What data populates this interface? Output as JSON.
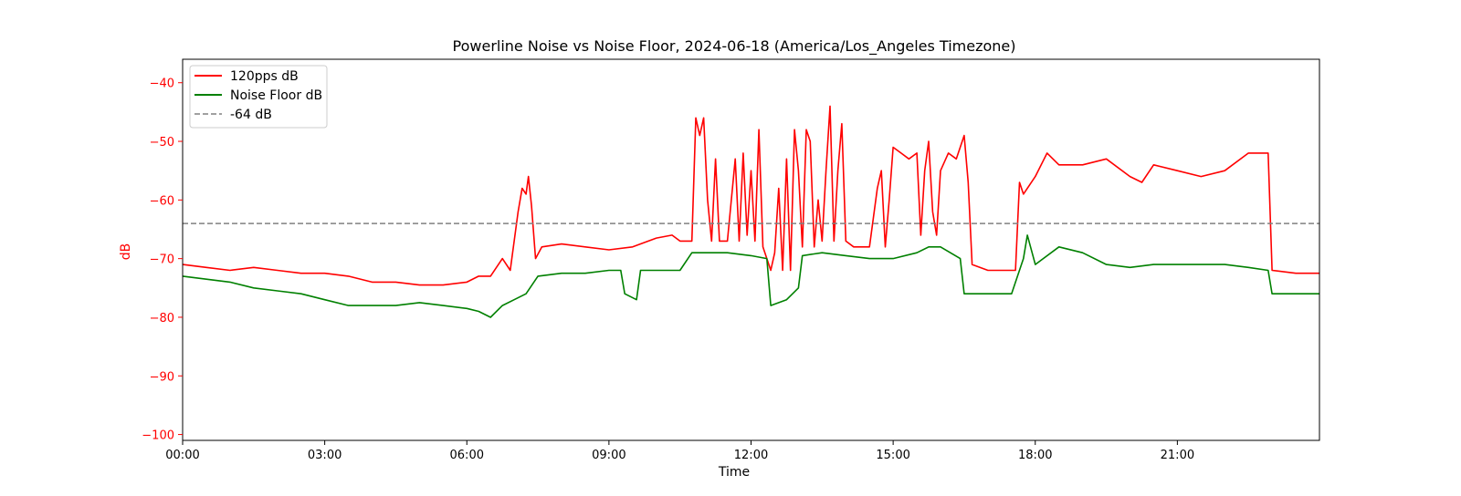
{
  "chart_data": {
    "type": "line",
    "title": "Powerline Noise vs Noise Floor, 2024-06-18 (America/Los_Angeles Timezone)",
    "xlabel": "Time",
    "ylabel": "dB",
    "xlim": [
      "00:00",
      "24:00"
    ],
    "ylim": [
      -101,
      -36
    ],
    "x_ticks": [
      "00:00",
      "03:00",
      "06:00",
      "09:00",
      "12:00",
      "15:00",
      "18:00",
      "21:00"
    ],
    "y_ticks": [
      -40,
      -50,
      -60,
      -70,
      -80,
      -90,
      -100
    ],
    "grid": false,
    "legend_position": "top-left",
    "colors": {
      "primary": "#ff0000",
      "secondary": "#008000",
      "reference": "#808080",
      "ylabel": "#ff0000"
    },
    "series": [
      {
        "name": "120pps dB",
        "color": "#ff0000",
        "style": "solid",
        "points": [
          [
            "00:00",
            -71
          ],
          [
            "00:30",
            -71.5
          ],
          [
            "01:00",
            -72
          ],
          [
            "01:30",
            -71.5
          ],
          [
            "02:00",
            -72
          ],
          [
            "02:30",
            -72.5
          ],
          [
            "03:00",
            -72.5
          ],
          [
            "03:30",
            -73
          ],
          [
            "04:00",
            -74
          ],
          [
            "04:30",
            -74
          ],
          [
            "05:00",
            -74.5
          ],
          [
            "05:30",
            -74.5
          ],
          [
            "06:00",
            -74
          ],
          [
            "06:15",
            -73
          ],
          [
            "06:30",
            -73
          ],
          [
            "06:45",
            -70
          ],
          [
            "06:55",
            -72
          ],
          [
            "07:05",
            -62
          ],
          [
            "07:10",
            -58
          ],
          [
            "07:15",
            -59
          ],
          [
            "07:18",
            -56
          ],
          [
            "07:22",
            -61
          ],
          [
            "07:27",
            -70
          ],
          [
            "07:35",
            -68
          ],
          [
            "08:00",
            -67.5
          ],
          [
            "08:30",
            -68
          ],
          [
            "09:00",
            -68.5
          ],
          [
            "09:30",
            -68
          ],
          [
            "10:00",
            -66.5
          ],
          [
            "10:20",
            -66
          ],
          [
            "10:30",
            -67
          ],
          [
            "10:45",
            -67
          ],
          [
            "10:50",
            -46
          ],
          [
            "10:55",
            -49
          ],
          [
            "11:00",
            -46
          ],
          [
            "11:05",
            -60
          ],
          [
            "11:10",
            -67
          ],
          [
            "11:15",
            -53
          ],
          [
            "11:20",
            -67
          ],
          [
            "11:30",
            -67
          ],
          [
            "11:40",
            -53
          ],
          [
            "11:45",
            -67
          ],
          [
            "11:50",
            -52
          ],
          [
            "11:55",
            -66
          ],
          [
            "12:00",
            -55
          ],
          [
            "12:05",
            -67
          ],
          [
            "12:10",
            -48
          ],
          [
            "12:15",
            -68
          ],
          [
            "12:25",
            -72
          ],
          [
            "12:30",
            -69
          ],
          [
            "12:35",
            -58
          ],
          [
            "12:40",
            -72
          ],
          [
            "12:45",
            -53
          ],
          [
            "12:50",
            -72
          ],
          [
            "12:55",
            -48
          ],
          [
            "13:00",
            -55
          ],
          [
            "13:05",
            -68
          ],
          [
            "13:10",
            -48
          ],
          [
            "13:15",
            -50
          ],
          [
            "13:20",
            -68
          ],
          [
            "13:25",
            -60
          ],
          [
            "13:30",
            -67
          ],
          [
            "13:35",
            -55
          ],
          [
            "13:40",
            -44
          ],
          [
            "13:45",
            -67
          ],
          [
            "13:50",
            -55
          ],
          [
            "13:55",
            -47
          ],
          [
            "14:00",
            -67
          ],
          [
            "14:10",
            -68
          ],
          [
            "14:20",
            -68
          ],
          [
            "14:30",
            -68
          ],
          [
            "14:35",
            -63
          ],
          [
            "14:40",
            -58
          ],
          [
            "14:45",
            -55
          ],
          [
            "14:50",
            -68
          ],
          [
            "14:55",
            -60
          ],
          [
            "15:00",
            -51
          ],
          [
            "15:10",
            -52
          ],
          [
            "15:20",
            -53
          ],
          [
            "15:30",
            -52
          ],
          [
            "15:35",
            -66
          ],
          [
            "15:40",
            -55
          ],
          [
            "15:45",
            -50
          ],
          [
            "15:50",
            -62
          ],
          [
            "15:55",
            -66
          ],
          [
            "16:00",
            -55
          ],
          [
            "16:10",
            -52
          ],
          [
            "16:20",
            -53
          ],
          [
            "16:30",
            -49
          ],
          [
            "16:35",
            -57
          ],
          [
            "16:40",
            -71
          ],
          [
            "17:00",
            -72
          ],
          [
            "17:30",
            -72
          ],
          [
            "17:35",
            -72
          ],
          [
            "17:40",
            -57
          ],
          [
            "17:45",
            -59
          ],
          [
            "18:00",
            -56
          ],
          [
            "18:15",
            -52
          ],
          [
            "18:30",
            -54
          ],
          [
            "19:00",
            -54
          ],
          [
            "19:30",
            -53
          ],
          [
            "20:00",
            -56
          ],
          [
            "20:15",
            -57
          ],
          [
            "20:30",
            -54
          ],
          [
            "21:00",
            -55
          ],
          [
            "21:30",
            -56
          ],
          [
            "22:00",
            -55
          ],
          [
            "22:30",
            -52
          ],
          [
            "22:55",
            -52
          ],
          [
            "23:00",
            -72
          ],
          [
            "23:30",
            -72.5
          ],
          [
            "24:00",
            -72.5
          ]
        ]
      },
      {
        "name": "Noise Floor dB",
        "color": "#008000",
        "style": "solid",
        "points": [
          [
            "00:00",
            -73
          ],
          [
            "00:30",
            -73.5
          ],
          [
            "01:00",
            -74
          ],
          [
            "01:30",
            -75
          ],
          [
            "02:00",
            -75.5
          ],
          [
            "02:30",
            -76
          ],
          [
            "03:00",
            -77
          ],
          [
            "03:30",
            -78
          ],
          [
            "04:00",
            -78
          ],
          [
            "04:30",
            -78
          ],
          [
            "05:00",
            -77.5
          ],
          [
            "05:30",
            -78
          ],
          [
            "06:00",
            -78.5
          ],
          [
            "06:15",
            -79
          ],
          [
            "06:30",
            -80
          ],
          [
            "06:45",
            -78
          ],
          [
            "07:00",
            -77
          ],
          [
            "07:15",
            -76
          ],
          [
            "07:30",
            -73
          ],
          [
            "08:00",
            -72.5
          ],
          [
            "08:30",
            -72.5
          ],
          [
            "09:00",
            -72
          ],
          [
            "09:15",
            -72
          ],
          [
            "09:20",
            -76
          ],
          [
            "09:35",
            -77
          ],
          [
            "09:40",
            -72
          ],
          [
            "10:00",
            -72
          ],
          [
            "10:30",
            -72
          ],
          [
            "10:45",
            -69
          ],
          [
            "11:00",
            -69
          ],
          [
            "11:30",
            -69
          ],
          [
            "12:00",
            -69.5
          ],
          [
            "12:20",
            -70
          ],
          [
            "12:25",
            -78
          ],
          [
            "12:45",
            -77
          ],
          [
            "13:00",
            -75
          ],
          [
            "13:05",
            -69.5
          ],
          [
            "13:30",
            -69
          ],
          [
            "14:00",
            -69.5
          ],
          [
            "14:30",
            -70
          ],
          [
            "15:00",
            -70
          ],
          [
            "15:30",
            -69
          ],
          [
            "15:45",
            -68
          ],
          [
            "16:00",
            -68
          ],
          [
            "16:25",
            -70
          ],
          [
            "16:30",
            -76
          ],
          [
            "17:00",
            -76
          ],
          [
            "17:30",
            -76
          ],
          [
            "17:45",
            -70
          ],
          [
            "17:50",
            -66
          ],
          [
            "18:00",
            -71
          ],
          [
            "18:30",
            -68
          ],
          [
            "19:00",
            -69
          ],
          [
            "19:30",
            -71
          ],
          [
            "20:00",
            -71.5
          ],
          [
            "20:30",
            -71
          ],
          [
            "21:00",
            -71
          ],
          [
            "21:30",
            -71
          ],
          [
            "22:00",
            -71
          ],
          [
            "22:30",
            -71.5
          ],
          [
            "22:55",
            -72
          ],
          [
            "23:00",
            -76
          ],
          [
            "23:30",
            -76
          ],
          [
            "24:00",
            -76
          ]
        ]
      },
      {
        "name": "-64 dB",
        "color": "#808080",
        "style": "dashed",
        "points": [
          [
            "00:00",
            -64
          ],
          [
            "24:00",
            -64
          ]
        ]
      }
    ]
  }
}
